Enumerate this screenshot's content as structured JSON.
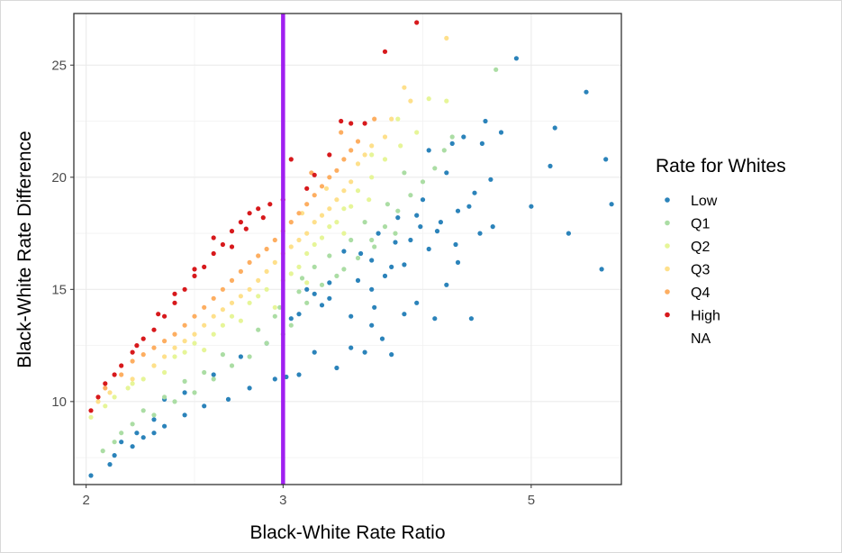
{
  "chart_data": {
    "type": "scatter",
    "xlabel": "Black-White Rate Ratio",
    "ylabel": "Black-White Rate Difference",
    "x_scale": "log",
    "xlim": [
      1.95,
      6.02
    ],
    "ylim": [
      6.3,
      27.3
    ],
    "x_ticks": [
      2,
      3,
      5
    ],
    "x_tick_labels": [
      "2",
      "3",
      "5"
    ],
    "x_minor_ticks": [
      2.5,
      4
    ],
    "y_ticks": [
      10,
      15,
      20,
      25
    ],
    "y_tick_labels": [
      "10",
      "15",
      "20",
      "25"
    ],
    "y_minor_ticks": [
      7.5,
      12.5,
      17.5,
      22.5
    ],
    "grid": true,
    "reference_line": {
      "x": 3,
      "color": "#A020F0"
    },
    "legend": {
      "title": "Rate for Whites",
      "position": "right",
      "entries": [
        {
          "name": "Low",
          "color": "#2B83BA"
        },
        {
          "name": "Q1",
          "color": "#ABDDA4"
        },
        {
          "name": "Q2",
          "color": "#E6F598"
        },
        {
          "name": "Q3",
          "color": "#FEE08B"
        },
        {
          "name": "Q4",
          "color": "#FDAE61"
        },
        {
          "name": "High",
          "color": "#D7191C"
        },
        {
          "name": "NA",
          "color": ""
        }
      ]
    },
    "series": [
      {
        "name": "Low",
        "color": "#2B83BA",
        "points": [
          [
            2.02,
            6.7
          ],
          [
            2.1,
            7.2
          ],
          [
            2.12,
            7.6
          ],
          [
            2.2,
            8.0
          ],
          [
            2.25,
            8.4
          ],
          [
            2.3,
            8.6
          ],
          [
            2.35,
            8.9
          ],
          [
            2.45,
            9.4
          ],
          [
            2.55,
            9.8
          ],
          [
            2.68,
            10.1
          ],
          [
            2.8,
            10.6
          ],
          [
            2.95,
            11.0
          ],
          [
            3.02,
            11.1
          ],
          [
            3.1,
            11.2
          ],
          [
            3.2,
            12.2
          ],
          [
            3.35,
            11.5
          ],
          [
            3.45,
            12.4
          ],
          [
            3.55,
            12.2
          ],
          [
            3.62,
            14.2
          ],
          [
            3.68,
            12.8
          ],
          [
            3.75,
            12.1
          ],
          [
            3.85,
            13.9
          ],
          [
            3.95,
            14.4
          ],
          [
            4.1,
            13.7
          ],
          [
            4.42,
            13.7
          ],
          [
            3.5,
            15.4
          ],
          [
            3.6,
            15.0
          ],
          [
            3.75,
            16.0
          ],
          [
            3.9,
            17.2
          ],
          [
            3.98,
            17.8
          ],
          [
            4.15,
            18.0
          ],
          [
            4.3,
            18.5
          ],
          [
            4.45,
            19.3
          ],
          [
            4.6,
            19.9
          ],
          [
            4.7,
            22.0
          ],
          [
            4.85,
            25.3
          ],
          [
            5.0,
            18.7
          ],
          [
            5.2,
            20.5
          ],
          [
            5.25,
            22.2
          ],
          [
            5.4,
            17.5
          ],
          [
            5.6,
            23.8
          ],
          [
            5.78,
            15.9
          ],
          [
            5.83,
            20.8
          ],
          [
            5.9,
            18.8
          ],
          [
            4.55,
            22.5
          ],
          [
            4.52,
            21.5
          ],
          [
            4.35,
            21.8
          ],
          [
            4.25,
            21.5
          ],
          [
            4.05,
            21.2
          ],
          [
            4.2,
            20.2
          ],
          [
            4.0,
            19.0
          ],
          [
            3.8,
            18.2
          ],
          [
            3.6,
            16.3
          ],
          [
            3.4,
            16.7
          ],
          [
            3.3,
            15.3
          ],
          [
            3.2,
            14.8
          ],
          [
            3.1,
            13.9
          ],
          [
            3.05,
            13.7
          ],
          [
            2.9,
            12.6
          ],
          [
            2.75,
            12.0
          ],
          [
            2.6,
            11.2
          ],
          [
            2.45,
            10.4
          ],
          [
            2.35,
            10.1
          ],
          [
            2.3,
            9.2
          ],
          [
            2.22,
            8.6
          ],
          [
            2.15,
            8.2
          ],
          [
            3.15,
            15.0
          ],
          [
            3.25,
            14.3
          ],
          [
            3.45,
            13.8
          ],
          [
            3.7,
            15.6
          ],
          [
            3.85,
            16.1
          ],
          [
            4.05,
            16.8
          ],
          [
            4.3,
            16.2
          ],
          [
            4.5,
            17.5
          ],
          [
            4.62,
            17.8
          ],
          [
            4.4,
            18.7
          ],
          [
            3.95,
            18.3
          ],
          [
            3.65,
            17.5
          ],
          [
            3.3,
            14.6
          ],
          [
            3.6,
            13.4
          ],
          [
            4.2,
            15.2
          ],
          [
            3.52,
            16.6
          ],
          [
            3.78,
            17.1
          ],
          [
            4.12,
            17.6
          ],
          [
            4.28,
            17.0
          ]
        ]
      },
      {
        "name": "Q1",
        "color": "#ABDDA4",
        "points": [
          [
            2.07,
            7.8
          ],
          [
            2.12,
            8.2
          ],
          [
            2.15,
            8.6
          ],
          [
            2.2,
            9.0
          ],
          [
            2.3,
            9.4
          ],
          [
            2.4,
            10.0
          ],
          [
            2.5,
            10.4
          ],
          [
            2.6,
            11.0
          ],
          [
            2.7,
            11.6
          ],
          [
            2.8,
            12.0
          ],
          [
            2.9,
            12.6
          ],
          [
            3.0,
            13.0
          ],
          [
            3.05,
            13.4
          ],
          [
            3.15,
            14.4
          ],
          [
            3.25,
            15.2
          ],
          [
            3.35,
            15.6
          ],
          [
            3.5,
            16.4
          ],
          [
            3.6,
            17.2
          ],
          [
            3.7,
            17.8
          ],
          [
            3.8,
            18.5
          ],
          [
            3.9,
            19.2
          ],
          [
            4.0,
            19.8
          ],
          [
            4.1,
            20.4
          ],
          [
            4.25,
            21.8
          ],
          [
            4.65,
            24.8
          ],
          [
            2.98,
            14.2
          ],
          [
            3.1,
            14.9
          ],
          [
            3.2,
            16.0
          ],
          [
            3.3,
            16.5
          ],
          [
            3.45,
            17.2
          ],
          [
            3.55,
            18.0
          ],
          [
            3.72,
            18.8
          ],
          [
            3.85,
            20.2
          ],
          [
            4.18,
            21.2
          ],
          [
            2.85,
            13.2
          ],
          [
            2.65,
            12.1
          ],
          [
            2.55,
            11.3
          ],
          [
            2.45,
            10.9
          ],
          [
            2.35,
            10.2
          ],
          [
            2.25,
            9.6
          ],
          [
            3.4,
            15.9
          ],
          [
            3.62,
            16.9
          ],
          [
            3.78,
            17.5
          ],
          [
            2.95,
            13.8
          ],
          [
            3.12,
            15.5
          ]
        ]
      },
      {
        "name": "Q2",
        "color": "#E6F598",
        "points": [
          [
            2.02,
            9.3
          ],
          [
            2.08,
            9.8
          ],
          [
            2.12,
            10.2
          ],
          [
            2.18,
            10.6
          ],
          [
            2.25,
            11.0
          ],
          [
            2.3,
            11.6
          ],
          [
            2.4,
            12.0
          ],
          [
            2.5,
            12.6
          ],
          [
            2.6,
            13.0
          ],
          [
            2.7,
            13.8
          ],
          [
            2.8,
            14.4
          ],
          [
            2.9,
            15.0
          ],
          [
            3.0,
            15.4
          ],
          [
            3.1,
            16.0
          ],
          [
            3.2,
            17.0
          ],
          [
            3.3,
            17.8
          ],
          [
            3.4,
            18.6
          ],
          [
            3.5,
            19.4
          ],
          [
            3.6,
            20.0
          ],
          [
            3.7,
            20.8
          ],
          [
            3.82,
            21.4
          ],
          [
            3.95,
            22.0
          ],
          [
            4.05,
            23.5
          ],
          [
            4.2,
            23.4
          ],
          [
            2.95,
            14.2
          ],
          [
            3.05,
            15.7
          ],
          [
            3.15,
            16.6
          ],
          [
            3.25,
            17.3
          ],
          [
            3.35,
            18.0
          ],
          [
            3.45,
            18.7
          ],
          [
            3.58,
            19.0
          ],
          [
            2.85,
            14.7
          ],
          [
            2.75,
            13.6
          ],
          [
            2.65,
            13.4
          ],
          [
            2.55,
            12.3
          ],
          [
            2.45,
            12.2
          ],
          [
            2.35,
            11.3
          ],
          [
            2.2,
            10.8
          ],
          [
            3.6,
            21.0
          ],
          [
            3.8,
            22.6
          ],
          [
            3.15,
            15.3
          ],
          [
            3.4,
            17.5
          ]
        ]
      },
      {
        "name": "Q3",
        "color": "#FEE08B",
        "points": [
          [
            2.05,
            10.0
          ],
          [
            2.1,
            10.4
          ],
          [
            2.2,
            11.0
          ],
          [
            2.3,
            11.6
          ],
          [
            2.4,
            12.4
          ],
          [
            2.5,
            13.0
          ],
          [
            2.6,
            13.8
          ],
          [
            2.7,
            14.4
          ],
          [
            2.8,
            15.0
          ],
          [
            2.9,
            15.8
          ],
          [
            3.0,
            16.6
          ],
          [
            3.1,
            17.2
          ],
          [
            3.2,
            18.0
          ],
          [
            3.3,
            18.6
          ],
          [
            3.4,
            19.4
          ],
          [
            3.5,
            20.6
          ],
          [
            3.6,
            21.4
          ],
          [
            3.75,
            22.6
          ],
          [
            3.85,
            24.0
          ],
          [
            4.2,
            26.2
          ],
          [
            2.95,
            16.2
          ],
          [
            3.05,
            16.9
          ],
          [
            3.15,
            17.5
          ],
          [
            3.25,
            18.3
          ],
          [
            3.35,
            19.0
          ],
          [
            3.45,
            19.8
          ],
          [
            2.85,
            15.4
          ],
          [
            2.75,
            14.7
          ],
          [
            2.65,
            14.1
          ],
          [
            2.55,
            13.4
          ],
          [
            2.45,
            12.7
          ],
          [
            2.35,
            12.0
          ],
          [
            3.55,
            21.0
          ],
          [
            3.7,
            21.8
          ],
          [
            3.9,
            23.4
          ],
          [
            3.12,
            18.4
          ],
          [
            3.28,
            19.5
          ]
        ]
      },
      {
        "name": "Q4",
        "color": "#FDAE61",
        "points": [
          [
            2.08,
            10.6
          ],
          [
            2.15,
            11.2
          ],
          [
            2.2,
            11.8
          ],
          [
            2.3,
            12.4
          ],
          [
            2.4,
            13.0
          ],
          [
            2.5,
            13.8
          ],
          [
            2.6,
            14.6
          ],
          [
            2.7,
            15.4
          ],
          [
            2.8,
            16.2
          ],
          [
            2.9,
            16.8
          ],
          [
            3.0,
            17.6
          ],
          [
            3.1,
            18.4
          ],
          [
            3.2,
            19.2
          ],
          [
            3.3,
            20.0
          ],
          [
            3.4,
            20.8
          ],
          [
            3.5,
            21.6
          ],
          [
            3.62,
            22.6
          ],
          [
            2.95,
            17.2
          ],
          [
            3.05,
            18.0
          ],
          [
            3.15,
            18.8
          ],
          [
            3.25,
            19.6
          ],
          [
            3.35,
            20.3
          ],
          [
            2.85,
            16.5
          ],
          [
            2.75,
            15.8
          ],
          [
            2.65,
            15.0
          ],
          [
            2.55,
            14.2
          ],
          [
            2.45,
            13.4
          ],
          [
            2.35,
            12.7
          ],
          [
            2.25,
            12.1
          ],
          [
            3.45,
            21.2
          ],
          [
            3.18,
            20.2
          ],
          [
            3.38,
            22.0
          ]
        ]
      },
      {
        "name": "High",
        "color": "#D7191C",
        "points": [
          [
            2.02,
            9.6
          ],
          [
            2.05,
            10.2
          ],
          [
            2.08,
            10.8
          ],
          [
            2.12,
            11.2
          ],
          [
            2.15,
            11.6
          ],
          [
            2.2,
            12.2
          ],
          [
            2.25,
            12.8
          ],
          [
            2.3,
            13.2
          ],
          [
            2.35,
            13.8
          ],
          [
            2.4,
            14.4
          ],
          [
            2.45,
            15.0
          ],
          [
            2.5,
            15.6
          ],
          [
            2.55,
            16.0
          ],
          [
            2.6,
            16.6
          ],
          [
            2.65,
            17.0
          ],
          [
            2.7,
            17.6
          ],
          [
            2.75,
            18.0
          ],
          [
            2.8,
            18.4
          ],
          [
            2.85,
            18.6
          ],
          [
            2.92,
            18.8
          ],
          [
            3.0,
            19.0
          ],
          [
            3.05,
            20.8
          ],
          [
            3.15,
            19.5
          ],
          [
            3.3,
            21.0
          ],
          [
            3.45,
            22.4
          ],
          [
            3.55,
            22.4
          ],
          [
            3.7,
            25.6
          ],
          [
            3.95,
            26.9
          ],
          [
            2.6,
            17.3
          ],
          [
            2.7,
            16.9
          ],
          [
            2.78,
            17.7
          ],
          [
            2.88,
            18.2
          ],
          [
            2.5,
            15.9
          ],
          [
            2.4,
            14.8
          ],
          [
            2.32,
            13.9
          ],
          [
            2.22,
            12.5
          ],
          [
            3.2,
            20.1
          ],
          [
            3.38,
            22.5
          ]
        ]
      }
    ]
  }
}
